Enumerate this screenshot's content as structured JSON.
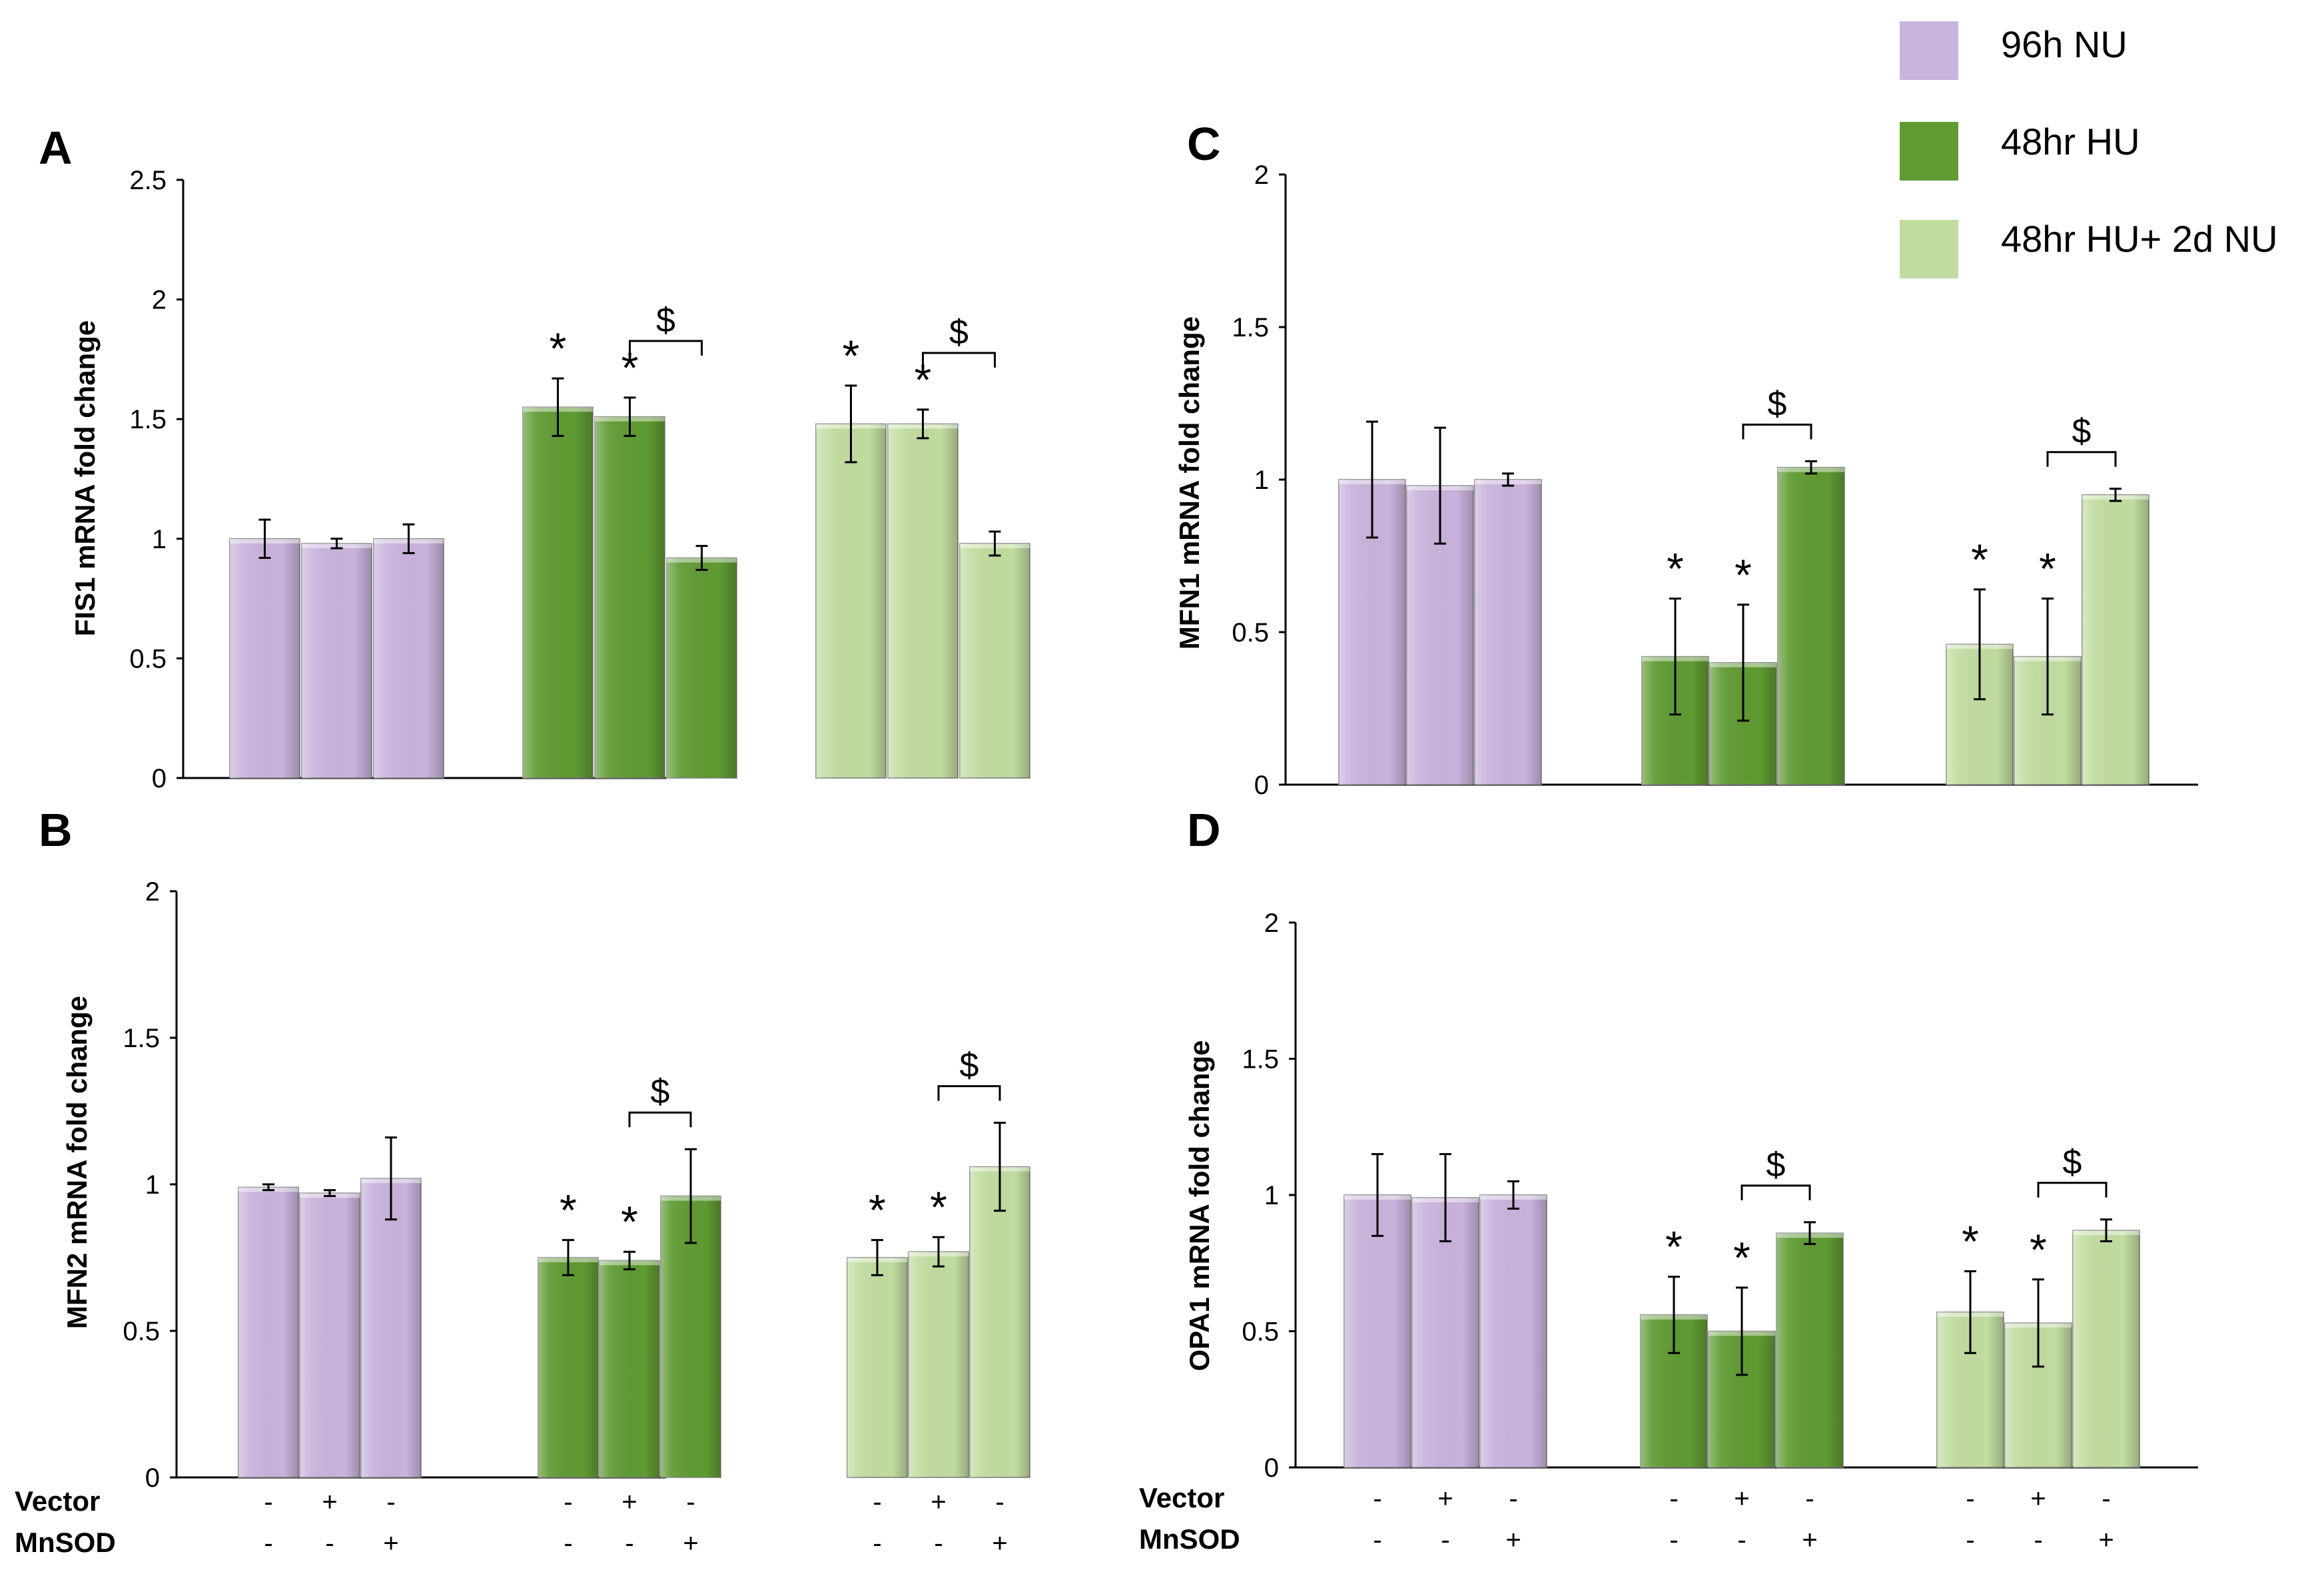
{
  "legend": {
    "items": [
      {
        "label": "96h NU",
        "color": "#c9b3dc"
      },
      {
        "label": "48hr HU",
        "color": "#5f9a32"
      },
      {
        "label": "48hr HU+ 2d NU",
        "color": "#c1dca0"
      }
    ]
  },
  "treatment_rows": {
    "vector_label": "Vector",
    "mnsod_label": "MnSOD",
    "vector_signs": [
      "-",
      "+",
      "-"
    ],
    "mnsod_signs": [
      "-",
      "-",
      "+"
    ]
  },
  "chart_data": [
    {
      "panel": "A",
      "type": "bar",
      "ylabel": "FIS1 mRNA fold change",
      "ylim": [
        0,
        2.5
      ],
      "yticks": [
        "0",
        "0.5",
        "1",
        "1.5",
        "2",
        "2.5"
      ],
      "groups": [
        "96h NU",
        "48hr HU",
        "48hr HU+ 2d NU"
      ],
      "values": [
        [
          1.0,
          0.98,
          1.0
        ],
        [
          1.55,
          1.51,
          0.92
        ],
        [
          1.48,
          1.48,
          0.98
        ]
      ],
      "errors": [
        [
          0.08,
          0.02,
          0.06
        ],
        [
          0.12,
          0.08,
          0.05
        ],
        [
          0.16,
          0.06,
          0.05
        ]
      ],
      "stars": [
        "*",
        "*"
      ],
      "dollar": "$"
    },
    {
      "panel": "B",
      "type": "bar",
      "ylabel": "MFN2 mRNA fold change",
      "ylim": [
        0,
        2
      ],
      "yticks": [
        "0",
        "0.5",
        "1",
        "1.5",
        "2"
      ],
      "groups": [
        "96h NU",
        "48hr HU",
        "48hr HU+ 2d NU"
      ],
      "values": [
        [
          0.99,
          0.97,
          1.02
        ],
        [
          0.75,
          0.74,
          0.96
        ],
        [
          0.75,
          0.77,
          1.06
        ]
      ],
      "errors": [
        [
          0.01,
          0.01,
          0.14
        ],
        [
          0.06,
          0.03,
          0.16
        ],
        [
          0.06,
          0.05,
          0.15
        ]
      ],
      "stars": [
        "*",
        "*"
      ],
      "dollar": "$"
    },
    {
      "panel": "C",
      "type": "bar",
      "ylabel": "MFN1 mRNA fold change",
      "ylim": [
        0,
        2
      ],
      "yticks": [
        "0",
        "0.5",
        "1",
        "1.5",
        "2"
      ],
      "groups": [
        "96h NU",
        "48hr HU",
        "48hr HU+ 2d NU"
      ],
      "values": [
        [
          1.0,
          0.98,
          1.0
        ],
        [
          0.42,
          0.4,
          1.04
        ],
        [
          0.46,
          0.42,
          0.95
        ]
      ],
      "errors": [
        [
          0.19,
          0.19,
          0.02
        ],
        [
          0.19,
          0.19,
          0.02
        ],
        [
          0.18,
          0.19,
          0.02
        ]
      ],
      "stars": [
        "*",
        "*"
      ],
      "dollar": "$"
    },
    {
      "panel": "D",
      "type": "bar",
      "ylabel": "OPA1  mRNA fold change",
      "ylim": [
        0,
        2
      ],
      "yticks": [
        "0",
        "0.5",
        "1",
        "1.5",
        "2"
      ],
      "groups": [
        "96h NU",
        "48hr HU",
        "48hr HU+ 2d NU"
      ],
      "values": [
        [
          1.0,
          0.99,
          1.0
        ],
        [
          0.56,
          0.5,
          0.86
        ],
        [
          0.57,
          0.53,
          0.87
        ]
      ],
      "errors": [
        [
          0.15,
          0.16,
          0.05
        ],
        [
          0.14,
          0.16,
          0.04
        ],
        [
          0.15,
          0.16,
          0.04
        ]
      ],
      "stars": [
        "*",
        "*"
      ],
      "dollar": "$"
    }
  ]
}
